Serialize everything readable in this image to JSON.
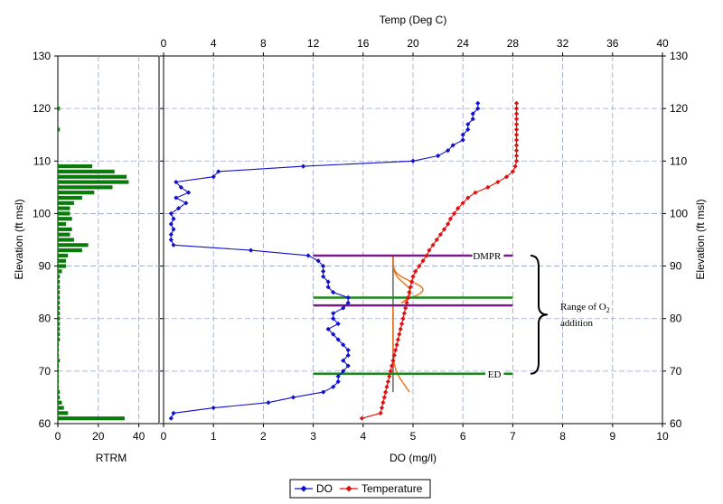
{
  "chart_data": [
    {
      "type": "bar",
      "orientation": "horizontal",
      "title": "",
      "xlabel": "RTRM",
      "ylabel": "Elevation (ft msl)",
      "xlim": [
        0,
        50
      ],
      "ylim": [
        60,
        130
      ],
      "xticks": [
        "0",
        "20",
        "40"
      ],
      "yticks": [
        "60",
        "70",
        "80",
        "90",
        "100",
        "110",
        "120",
        "130"
      ],
      "color": "#0a7a0a",
      "series": [
        {
          "name": "RTRM",
          "elevations": [
            61,
            62,
            63,
            64,
            65,
            66,
            67,
            68,
            69,
            70,
            71,
            72,
            73,
            74,
            75,
            76,
            77,
            78,
            79,
            80,
            81,
            82,
            83,
            84,
            85,
            86,
            87,
            88,
            89,
            90,
            91,
            92,
            93,
            94,
            95,
            96,
            97,
            98,
            99,
            100,
            101,
            102,
            103,
            104,
            105,
            106,
            107,
            108,
            109,
            116,
            120
          ],
          "values": [
            33,
            5,
            3,
            2,
            1,
            1,
            0.5,
            0.5,
            0.5,
            0.5,
            0.5,
            1,
            0.5,
            0.5,
            0.5,
            1,
            1,
            1,
            1,
            1,
            1,
            1,
            1,
            1,
            1,
            1,
            1,
            1,
            2,
            4,
            4,
            5,
            12,
            15,
            8,
            6,
            7,
            4,
            7,
            6,
            6,
            8,
            12,
            18,
            27,
            35,
            34,
            28,
            17,
            1,
            1
          ]
        }
      ]
    },
    {
      "type": "line",
      "title": "",
      "xlabel": "DO (mg/l)",
      "x2label": "Temp (Deg C)",
      "ylabel": "Elevation (ft msl)",
      "y2label": "Elevation (ft msl)",
      "xlim": [
        0,
        10
      ],
      "x2lim": [
        0,
        40
      ],
      "ylim": [
        60,
        130
      ],
      "xticks": [
        "0",
        "1",
        "2",
        "3",
        "4",
        "5",
        "6",
        "7",
        "8",
        "9",
        "10"
      ],
      "x2ticks": [
        "0",
        "4",
        "8",
        "12",
        "16",
        "20",
        "24",
        "28",
        "32",
        "36",
        "40"
      ],
      "yticks": [
        "60",
        "70",
        "80",
        "90",
        "100",
        "110",
        "120",
        "130"
      ],
      "legend": [
        "DO",
        "Temperature"
      ],
      "series": [
        {
          "name": "DO",
          "axis": "DO",
          "color": "#1010cc",
          "points": [
            [
              0.15,
              61
            ],
            [
              0.2,
              62
            ],
            [
              1,
              63
            ],
            [
              2.1,
              64
            ],
            [
              2.6,
              65
            ],
            [
              3.2,
              66
            ],
            [
              3.4,
              67
            ],
            [
              3.5,
              68
            ],
            [
              3.5,
              69
            ],
            [
              3.6,
              70
            ],
            [
              3.7,
              71
            ],
            [
              3.6,
              72
            ],
            [
              3.7,
              73
            ],
            [
              3.7,
              74
            ],
            [
              3.6,
              75
            ],
            [
              3.5,
              76
            ],
            [
              3.4,
              77
            ],
            [
              3.3,
              78
            ],
            [
              3.5,
              79
            ],
            [
              3.4,
              80
            ],
            [
              3.4,
              81
            ],
            [
              3.6,
              82
            ],
            [
              3.7,
              83
            ],
            [
              3.7,
              84
            ],
            [
              3.4,
              85
            ],
            [
              3.3,
              86
            ],
            [
              3.3,
              87
            ],
            [
              3.2,
              88
            ],
            [
              3.2,
              89
            ],
            [
              3.2,
              90
            ],
            [
              3.1,
              91
            ],
            [
              2.9,
              92
            ],
            [
              1.75,
              93
            ],
            [
              0.2,
              94
            ],
            [
              0.15,
              95
            ],
            [
              0.15,
              96
            ],
            [
              0.2,
              97
            ],
            [
              0.15,
              98
            ],
            [
              0.2,
              99
            ],
            [
              0.15,
              100
            ],
            [
              0.3,
              101
            ],
            [
              0.45,
              102
            ],
            [
              0.25,
              103
            ],
            [
              0.5,
              104
            ],
            [
              0.35,
              105
            ],
            [
              0.25,
              106
            ],
            [
              1,
              107
            ],
            [
              1.1,
              108
            ],
            [
              2.8,
              109
            ],
            [
              5,
              110
            ],
            [
              5.5,
              111
            ],
            [
              5.7,
              112
            ],
            [
              5.8,
              113
            ],
            [
              6,
              114
            ],
            [
              6,
              115
            ],
            [
              6.1,
              116
            ],
            [
              6.1,
              117
            ],
            [
              6.2,
              118
            ],
            [
              6.2,
              119
            ],
            [
              6.3,
              120
            ],
            [
              6.3,
              121
            ]
          ]
        },
        {
          "name": "Temperature",
          "axis": "Temp",
          "color": "#e01010",
          "points": [
            [
              15.9,
              61
            ],
            [
              17.4,
              62
            ],
            [
              17.5,
              63
            ],
            [
              17.6,
              64
            ],
            [
              17.7,
              65
            ],
            [
              17.8,
              66
            ],
            [
              17.9,
              67
            ],
            [
              18.0,
              68
            ],
            [
              18.1,
              69
            ],
            [
              18.2,
              70
            ],
            [
              18.3,
              71
            ],
            [
              18.4,
              72
            ],
            [
              18.5,
              73
            ],
            [
              18.6,
              74
            ],
            [
              18.7,
              75
            ],
            [
              18.8,
              76
            ],
            [
              18.9,
              77
            ],
            [
              19.0,
              78
            ],
            [
              19.1,
              79
            ],
            [
              19.2,
              80
            ],
            [
              19.3,
              81
            ],
            [
              19.4,
              82
            ],
            [
              19.5,
              83
            ],
            [
              19.6,
              84
            ],
            [
              19.7,
              85
            ],
            [
              19.8,
              86
            ],
            [
              19.9,
              87
            ],
            [
              20.0,
              88
            ],
            [
              20.2,
              89
            ],
            [
              20.5,
              90
            ],
            [
              20.8,
              91
            ],
            [
              21.1,
              92
            ],
            [
              21.3,
              93
            ],
            [
              21.6,
              94
            ],
            [
              21.9,
              95
            ],
            [
              22.2,
              96
            ],
            [
              22.5,
              97
            ],
            [
              22.8,
              98
            ],
            [
              23.0,
              99
            ],
            [
              23.3,
              100
            ],
            [
              23.6,
              101
            ],
            [
              24.0,
              102
            ],
            [
              24.4,
              103
            ],
            [
              25.0,
              104
            ],
            [
              26.0,
              105
            ],
            [
              26.8,
              106
            ],
            [
              27.5,
              107
            ],
            [
              28.0,
              108
            ],
            [
              28.2,
              109
            ],
            [
              28.3,
              110
            ],
            [
              28.3,
              111
            ],
            [
              28.3,
              112
            ],
            [
              28.3,
              113
            ],
            [
              28.3,
              114
            ],
            [
              28.3,
              115
            ],
            [
              28.3,
              116
            ],
            [
              28.3,
              117
            ],
            [
              28.3,
              118
            ],
            [
              28.3,
              119
            ],
            [
              28.3,
              120
            ],
            [
              28.3,
              121
            ]
          ]
        }
      ],
      "annotations": {
        "horizontal_lines": [
          {
            "elevation": 92,
            "color": "#7a1a8a",
            "x_from": 3.0,
            "x_to": 7.0,
            "label": "DMPR"
          },
          {
            "elevation": 84,
            "color": "#1a8a1a",
            "x_from": 3.0,
            "x_to": 7.0,
            "label": ""
          },
          {
            "elevation": 82.5,
            "color": "#7a1a8a",
            "x_from": 3.0,
            "x_to": 7.0,
            "label": ""
          },
          {
            "elevation": 69.5,
            "color": "#1a8a1a",
            "x_from": 3.0,
            "x_to": 7.0,
            "label": "ED"
          }
        ],
        "vertical_line": {
          "do": 4.6,
          "from_elevation": 66,
          "to_elevation": 92,
          "color": "#666666"
        },
        "orange_curves": {
          "color": "#f07010",
          "upper": {
            "baseline_do": 4.6,
            "base_elevation": 92,
            "end_elevation": 83,
            "spikes": [
              {
                "center_do": 4.95,
                "peak_elevation": 85
              },
              {
                "center_do": 5.2,
                "peak_elevation": 85.5
              }
            ]
          },
          "lower": {
            "baseline_do": 4.6,
            "base_elevation": 82.5,
            "end_elevation": 67,
            "spikes": [
              {
                "center_do": 5.0,
                "peak_elevation": 64
              }
            ]
          }
        },
        "brace": {
          "from_elevation": 92,
          "to_elevation": 69.5,
          "label_line1": "Range of O",
          "label_sub": "2",
          "label_line2": "addition"
        }
      }
    }
  ]
}
